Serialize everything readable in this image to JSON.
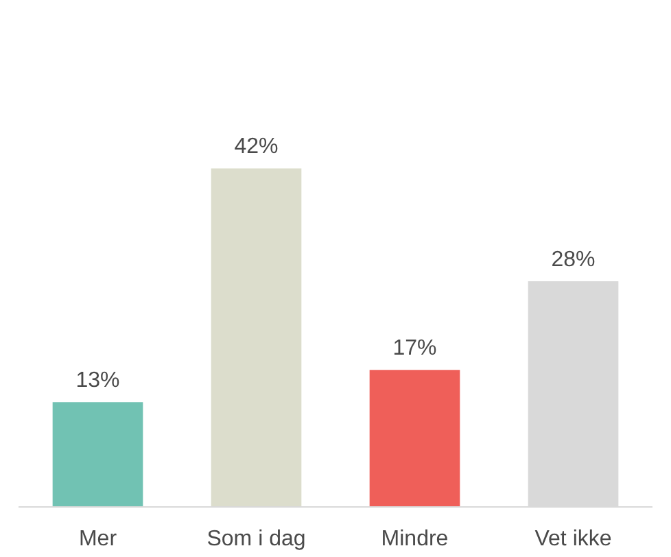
{
  "chart_data": {
    "type": "bar",
    "categories": [
      "Mer",
      "Som i dag",
      "Mindre",
      "Vet ikke"
    ],
    "values": [
      13,
      42,
      17,
      28
    ],
    "colors": [
      "#71c2b3",
      "#dcddcc",
      "#ef5f59",
      "#d9d9d9"
    ],
    "value_labels": [
      "13%",
      "42%",
      "17%",
      "28%"
    ]
  }
}
